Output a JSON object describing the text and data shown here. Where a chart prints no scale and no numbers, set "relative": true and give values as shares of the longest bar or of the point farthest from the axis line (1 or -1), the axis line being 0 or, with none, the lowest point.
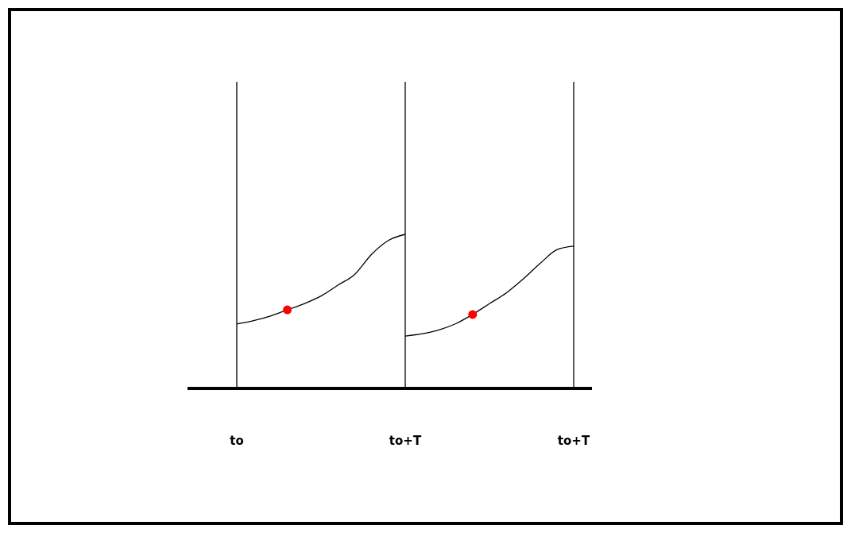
{
  "chart_data": {
    "type": "line",
    "relative": true,
    "grid": "x",
    "categories": [
      "to",
      null,
      null,
      null,
      null,
      null,
      null,
      null,
      null,
      null,
      "to+T",
      null,
      null,
      null,
      null,
      null,
      null,
      null,
      null,
      null,
      "to+T"
    ],
    "series": [
      {
        "color": "#000000",
        "values": [
          0.418,
          0.44,
          0.47,
          0.51,
          0.55,
          0.6,
          0.67,
          0.74,
          0.87,
          0.96,
          1,
          null,
          null,
          null,
          null,
          null,
          null,
          null,
          null,
          null,
          null
        ]
      },
      {
        "color": "#000000",
        "values": [
          null,
          null,
          null,
          null,
          null,
          null,
          null,
          null,
          null,
          null,
          0.34,
          0.355,
          0.38,
          0.42,
          0.48,
          0.55,
          0.62,
          0.71,
          0.81,
          0.9,
          0.923
        ]
      },
      {
        "type": "scatter",
        "color": "#ff0000",
        "marker": "circle",
        "values": [
          null,
          null,
          null,
          0.51,
          null,
          null,
          null,
          null,
          null,
          null,
          null,
          null,
          null,
          null,
          0.48,
          null,
          null,
          null,
          null,
          null,
          null
        ]
      }
    ]
  }
}
